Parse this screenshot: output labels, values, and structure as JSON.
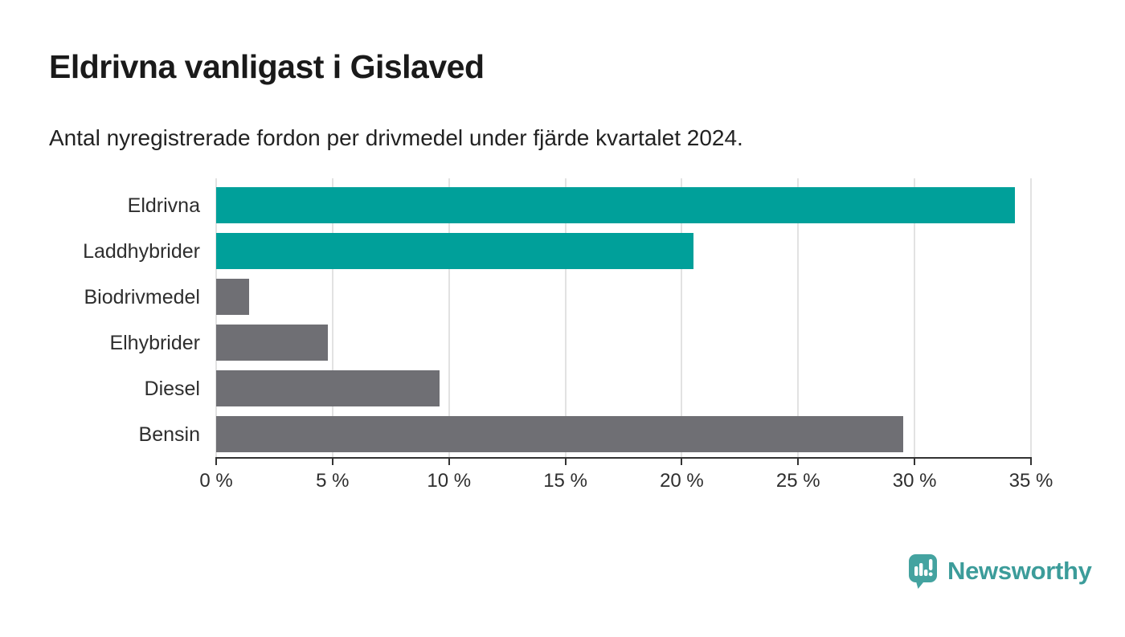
{
  "chart": {
    "title": "Eldrivna vanligast i Gislaved",
    "subtitle": "Antal nyregistrerade fordon per drivmedel under fjärde kvartalet 2024."
  },
  "chart_data": {
    "type": "bar",
    "orientation": "horizontal",
    "title": "Eldrivna vanligast i Gislaved",
    "subtitle": "Antal nyregistrerade fordon per drivmedel under fjärde kvartalet 2024.",
    "categories": [
      "Eldrivna",
      "Laddhybrider",
      "Biodrivmedel",
      "Elhybrider",
      "Diesel",
      "Bensin"
    ],
    "values": [
      34.3,
      20.5,
      1.4,
      4.8,
      9.6,
      29.5
    ],
    "unit": "%",
    "bar_colors": [
      "#00A09A",
      "#00A09A",
      "#6F6F74",
      "#6F6F74",
      "#6F6F74",
      "#6F6F74"
    ],
    "highlight_color": "#00A09A",
    "default_color": "#6F6F74",
    "xlabel": "",
    "ylabel": "",
    "xlim": [
      0,
      35
    ],
    "x_ticks": [
      0,
      5,
      10,
      15,
      20,
      25,
      30,
      35
    ],
    "x_tick_labels": [
      "0 %",
      "5 %",
      "10 %",
      "15 %",
      "20 %",
      "25 %",
      "30 %",
      "35 %"
    ],
    "grid": "vertical",
    "gridline_color": "#E2E2E2",
    "axis_color": "#333333",
    "legend_position": "none"
  },
  "branding": {
    "logo_text": "Newsworthy",
    "logo_color": "#3C9C9A",
    "logo_bubble_color": "#44A3A0"
  }
}
